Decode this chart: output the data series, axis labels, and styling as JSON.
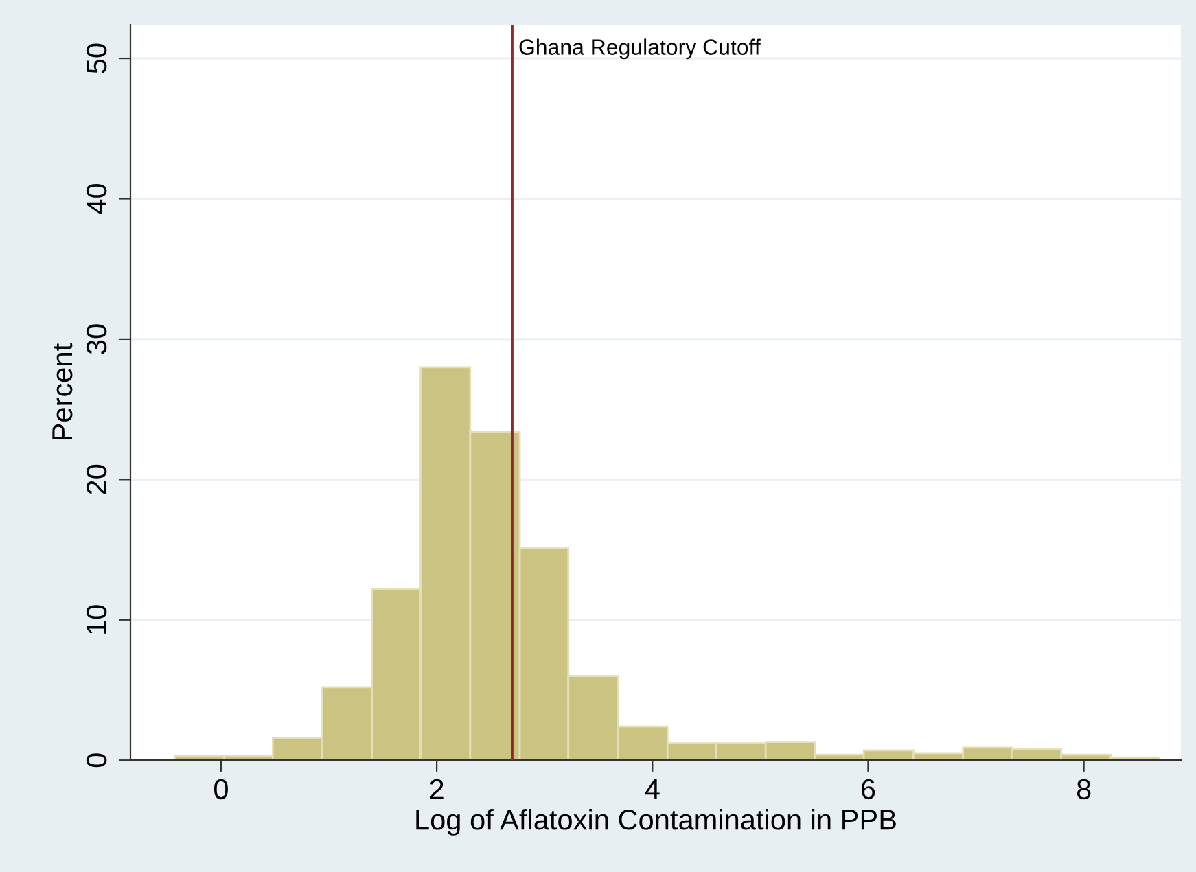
{
  "chart_data": {
    "type": "histogram",
    "xlabel": "Log of Aflatoxin Contamination in PPB",
    "ylabel": "Percent",
    "bins": [
      -0.43,
      0.03,
      0.48,
      0.94,
      1.4,
      1.85,
      2.31,
      2.77,
      3.22,
      3.68,
      4.14,
      4.59,
      5.05,
      5.51,
      5.96,
      6.42,
      6.88,
      7.33,
      7.79,
      8.25,
      8.7
    ],
    "values": [
      0.3,
      0.3,
      1.6,
      5.2,
      12.2,
      28.0,
      23.4,
      15.1,
      6.0,
      2.4,
      1.2,
      1.2,
      1.3,
      0.4,
      0.7,
      0.5,
      0.9,
      0.8,
      0.4,
      0.2
    ],
    "color": "#cbc382",
    "xlim": [
      -0.84,
      8.9
    ],
    "ylim": [
      0,
      52.4
    ],
    "xticks": [
      0,
      2,
      4,
      6,
      8
    ],
    "yticks": [
      0,
      10,
      20,
      30,
      40,
      50
    ],
    "grid": "y",
    "ref_lines": [
      {
        "axis": "x",
        "value": 2.7,
        "label": "Ghana Regulatory Cutoff",
        "color": "#8b2a2a"
      }
    ]
  }
}
